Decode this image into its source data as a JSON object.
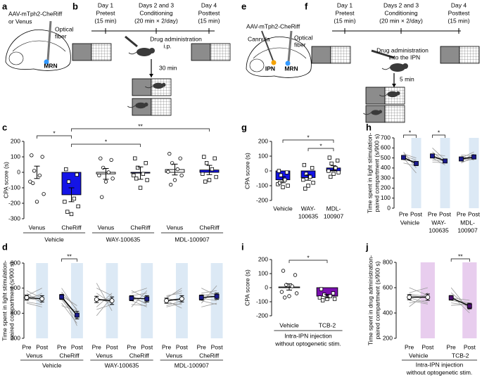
{
  "panel_labels": [
    "a",
    "b",
    "c",
    "d",
    "e",
    "f",
    "g",
    "h",
    "i",
    "j"
  ],
  "diagram_a": {
    "virus": [
      "AAV-mTph2-CheRiff",
      "or Venus"
    ],
    "fiber": [
      "Optical",
      "fiber"
    ],
    "region": "MRN"
  },
  "diagram_b": {
    "timeline": [
      {
        "day": "Day 1",
        "phase": "Pretest",
        "duration": "(15 min)"
      },
      {
        "day": "Days 2 and 3",
        "phase": "Conditioning",
        "duration": "(20 min × 2/day)"
      },
      {
        "day": "Day 4",
        "phase": "Posttest",
        "duration": "(15 min)"
      }
    ],
    "drug": [
      "Drug administration",
      "i.p."
    ],
    "delay": "30 min"
  },
  "diagram_e": {
    "virus": "AAV-mTph2-CheRiff",
    "cannula": "Cannula",
    "fiber": [
      "Optical",
      "fiber"
    ],
    "regions": [
      "IPN",
      "MRN"
    ]
  },
  "diagram_f": {
    "timeline": [
      {
        "day": "Day 1",
        "phase": "Pretest",
        "duration": "(15 min)"
      },
      {
        "day": "Days 2 and 3",
        "phase": "Conditioning",
        "duration": "(20 min × 2/day)"
      },
      {
        "day": "Day 4",
        "phase": "Posttest",
        "duration": "(15 min)"
      }
    ],
    "drug": [
      "Drug administration",
      "into the IPN"
    ],
    "delay": "5 min"
  },
  "chart_data": [
    {
      "type": "bar",
      "ylabel": "CPA score (s)",
      "ylim": [
        -300,
        200
      ],
      "yticks": [
        -300,
        -200,
        -100,
        0,
        100,
        200
      ],
      "categories": [
        "Venus",
        "CheRiff",
        "Venus",
        "CheRiff",
        "Venus",
        "CheRiff"
      ],
      "values": [
        0,
        -145,
        -10,
        -5,
        18,
        15
      ],
      "errors": [
        40,
        45,
        35,
        40,
        35,
        30
      ],
      "colors": [
        "#ffffff",
        "#1414e6",
        "#ffffff",
        "#1414e6",
        "#ffffff",
        "#1414e6"
      ],
      "markers": [
        "circle",
        "square",
        "circle",
        "square",
        "circle",
        "square"
      ],
      "points": [
        [
          110,
          100,
          10,
          -20,
          -60,
          -140,
          -190,
          -70
        ],
        [
          20,
          -15,
          -60,
          -170,
          -190,
          -220,
          -270,
          -255
        ],
        [
          90,
          80,
          30,
          0,
          -20,
          -40,
          -60,
          -160
        ],
        [
          90,
          60,
          30,
          -10,
          -20,
          -50,
          -100,
          -40
        ],
        [
          120,
          90,
          60,
          20,
          4,
          -20,
          -50,
          -80
        ],
        [
          100,
          90,
          60,
          20,
          -10,
          -30,
          -50,
          -60
        ]
      ],
      "groups": [
        {
          "name": "Vehicle",
          "span": [
            0,
            1
          ]
        },
        {
          "name": "WAY-100635",
          "span": [
            2,
            3
          ]
        },
        {
          "name": "MDL-100907",
          "span": [
            4,
            5
          ]
        }
      ],
      "brackets": [
        {
          "from": 0,
          "to": 1,
          "label": "*"
        },
        {
          "from": 1,
          "to": 5,
          "label": "**"
        },
        {
          "from": 1,
          "to": 3,
          "label": "*"
        }
      ]
    },
    {
      "type": "paired",
      "ylabel": [
        "Time spent in light stimulation-",
        "paired compartment (s/900 s)"
      ],
      "ylim": [
        200,
        800
      ],
      "yticks": [
        200,
        400,
        600,
        800
      ],
      "sublabels": [
        "Pre",
        "Post"
      ],
      "pairs": [
        "Venus",
        "CheRiff",
        "Venus",
        "CheRiff",
        "Venus",
        "CheRiff"
      ],
      "pre": [
        525,
        530,
        510,
        520,
        500,
        525
      ],
      "post": [
        515,
        385,
        500,
        515,
        515,
        535
      ],
      "pre_err": [
        20,
        20,
        25,
        20,
        20,
        20
      ],
      "post_err": [
        25,
        30,
        30,
        25,
        25,
        25
      ],
      "markers": [
        "circle",
        "square",
        "circle",
        "square",
        "circle",
        "square"
      ],
      "marker_colors": [
        "#ffffff",
        "#1a1a8c",
        "#ffffff",
        "#1a1a8c",
        "#ffffff",
        "#1a1a8c"
      ],
      "shade": "#dce9f5",
      "subjects": [
        [
          [
            560,
            480
          ],
          [
            540,
            600
          ],
          [
            520,
            500
          ],
          [
            500,
            560
          ],
          [
            580,
            520
          ],
          [
            490,
            470
          ],
          [
            530,
            540
          ],
          [
            480,
            450
          ]
        ],
        [
          [
            560,
            300
          ],
          [
            600,
            420
          ],
          [
            520,
            380
          ],
          [
            480,
            320
          ],
          [
            540,
            460
          ],
          [
            510,
            350
          ],
          [
            570,
            430
          ],
          [
            460,
            420
          ]
        ],
        [
          [
            640,
            420
          ],
          [
            450,
            560
          ],
          [
            520,
            480
          ],
          [
            600,
            540
          ],
          [
            430,
            470
          ],
          [
            500,
            520
          ],
          [
            560,
            480
          ],
          [
            380,
            530
          ]
        ],
        [
          [
            560,
            600
          ],
          [
            500,
            450
          ],
          [
            580,
            520
          ],
          [
            450,
            580
          ],
          [
            520,
            480
          ],
          [
            540,
            560
          ],
          [
            470,
            460
          ],
          [
            540,
            470
          ]
        ],
        [
          [
            520,
            600
          ],
          [
            480,
            470
          ],
          [
            540,
            560
          ],
          [
            460,
            500
          ],
          [
            500,
            440
          ],
          [
            530,
            580
          ],
          [
            450,
            480
          ],
          [
            520,
            490
          ]
        ],
        [
          [
            600,
            540
          ],
          [
            480,
            620
          ],
          [
            520,
            500
          ],
          [
            560,
            580
          ],
          [
            450,
            480
          ],
          [
            540,
            560
          ],
          [
            500,
            470
          ],
          [
            550,
            530
          ]
        ]
      ],
      "groups": [
        {
          "name": "Vehicle",
          "span": [
            0,
            1
          ]
        },
        {
          "name": "WAY-100635",
          "span": [
            2,
            3
          ]
        },
        {
          "name": "MDL-100907",
          "span": [
            4,
            5
          ]
        }
      ],
      "brackets": [
        {
          "pair": 1,
          "label": "**"
        }
      ]
    },
    {
      "type": "bar",
      "ylabel": "CPA score (s)",
      "ylim": [
        -200,
        200
      ],
      "yticks": [
        -200,
        -100,
        0,
        100,
        200
      ],
      "categories": [
        "Vehicle",
        [
          "WAY-",
          "100635"
        ],
        [
          "MDL-",
          "100907"
        ]
      ],
      "values": [
        -60,
        -45,
        20
      ],
      "errors": [
        20,
        18,
        15
      ],
      "colors": [
        "#1414e6",
        "#1414e6",
        "#1414e6"
      ],
      "markers": [
        "square",
        "square",
        "square"
      ],
      "points": [
        [
          0,
          -10,
          -30,
          -60,
          -90,
          -100,
          -110,
          -80
        ],
        [
          40,
          20,
          -20,
          -40,
          -60,
          -80,
          -100,
          -120
        ],
        [
          90,
          70,
          50,
          20,
          0,
          -10,
          -20,
          -40
        ]
      ],
      "brackets": [
        {
          "from": 0,
          "to": 2,
          "label": "*"
        },
        {
          "from": 1,
          "to": 2,
          "label": "*"
        }
      ]
    },
    {
      "type": "paired",
      "ylabel": [
        "Time spent in light stimulation-",
        "paired compartment (s/900 s)"
      ],
      "ylim": [
        0,
        700
      ],
      "yticks": [
        0,
        100,
        200,
        300,
        400,
        500,
        600,
        700
      ],
      "sublabels": [
        "Pre",
        "Post"
      ],
      "pairs": [
        "Vehicle",
        [
          "WAY-",
          "100635"
        ],
        [
          "MDL-",
          "100907"
        ]
      ],
      "pre": [
        505,
        520,
        490
      ],
      "post": [
        445,
        470,
        510
      ],
      "pre_err": [
        18,
        18,
        15
      ],
      "post_err": [
        20,
        15,
        20
      ],
      "markers": [
        "square",
        "square",
        "square"
      ],
      "marker_colors": [
        "#1a1a8c",
        "#1a1a8c",
        "#1a1a8c"
      ],
      "shade": "#dce9f5",
      "subjects": [
        [
          [
            560,
            400
          ],
          [
            500,
            350
          ],
          [
            520,
            480
          ],
          [
            480,
            460
          ],
          [
            540,
            500
          ],
          [
            450,
            420
          ],
          [
            510,
            440
          ],
          [
            480,
            470
          ]
        ],
        [
          [
            600,
            480
          ],
          [
            560,
            460
          ],
          [
            500,
            430
          ],
          [
            480,
            470
          ],
          [
            540,
            520
          ],
          [
            460,
            450
          ],
          [
            520,
            470
          ],
          [
            500,
            480
          ]
        ],
        [
          [
            470,
            540
          ],
          [
            520,
            480
          ],
          [
            450,
            510
          ],
          [
            500,
            560
          ],
          [
            480,
            500
          ],
          [
            530,
            520
          ],
          [
            460,
            490
          ],
          [
            510,
            480
          ]
        ]
      ],
      "brackets": [
        {
          "pair": 0,
          "label": "*"
        },
        {
          "pair": 1,
          "label": "*"
        }
      ]
    },
    {
      "type": "bar",
      "ylabel": "CPA score (s)",
      "ylim": [
        -200,
        200
      ],
      "yticks": [
        -200,
        -100,
        0,
        100,
        200
      ],
      "categories": [
        "Vehicle",
        "TCB-2"
      ],
      "values": [
        5,
        -60
      ],
      "errors": [
        22,
        12
      ],
      "colors": [
        "#ffffff",
        "#7a0fb0"
      ],
      "markers": [
        "circle",
        "square"
      ],
      "points": [
        [
          120,
          90,
          20,
          10,
          -30,
          -40,
          -60,
          -70
        ],
        [
          -10,
          -40,
          -50,
          -60,
          -70,
          -80,
          -80,
          -90
        ]
      ],
      "groups": [
        {
          "name": [
            "Intra-IPN injection",
            "without optogenetic stim."
          ],
          "span": [
            0,
            1
          ]
        }
      ],
      "brackets": [
        {
          "from": 0,
          "to": 1,
          "label": "*"
        }
      ]
    },
    {
      "type": "paired",
      "ylabel": [
        "Time spent in drug administration-",
        "paired compartment (s/900 s)"
      ],
      "ylim": [
        200,
        800
      ],
      "yticks": [
        200,
        400,
        600,
        800
      ],
      "sublabels": [
        "Pre",
        "Post"
      ],
      "pairs": [
        "Vehicle",
        "TCB-2"
      ],
      "pre": [
        525,
        520
      ],
      "post": [
        525,
        455
      ],
      "pre_err": [
        20,
        18
      ],
      "post_err": [
        25,
        22
      ],
      "markers": [
        "circle",
        "square"
      ],
      "marker_colors": [
        "#ffffff",
        "#4b0e6e"
      ],
      "shade": "#e8cdee",
      "subjects": [
        [
          [
            560,
            600
          ],
          [
            480,
            500
          ],
          [
            520,
            480
          ],
          [
            600,
            540
          ],
          [
            450,
            560
          ],
          [
            540,
            520
          ],
          [
            500,
            470
          ],
          [
            550,
            530
          ]
        ],
        [
          [
            600,
            420
          ],
          [
            560,
            440
          ],
          [
            500,
            480
          ],
          [
            480,
            460
          ],
          [
            540,
            400
          ],
          [
            460,
            470
          ],
          [
            520,
            500
          ],
          [
            500,
            470
          ]
        ]
      ],
      "groups": [
        {
          "name": [
            "Intra-IPN injection",
            "without optogenetic stim."
          ],
          "span": [
            0,
            1
          ]
        }
      ],
      "brackets": [
        {
          "pair": 1,
          "label": "**"
        }
      ]
    }
  ]
}
